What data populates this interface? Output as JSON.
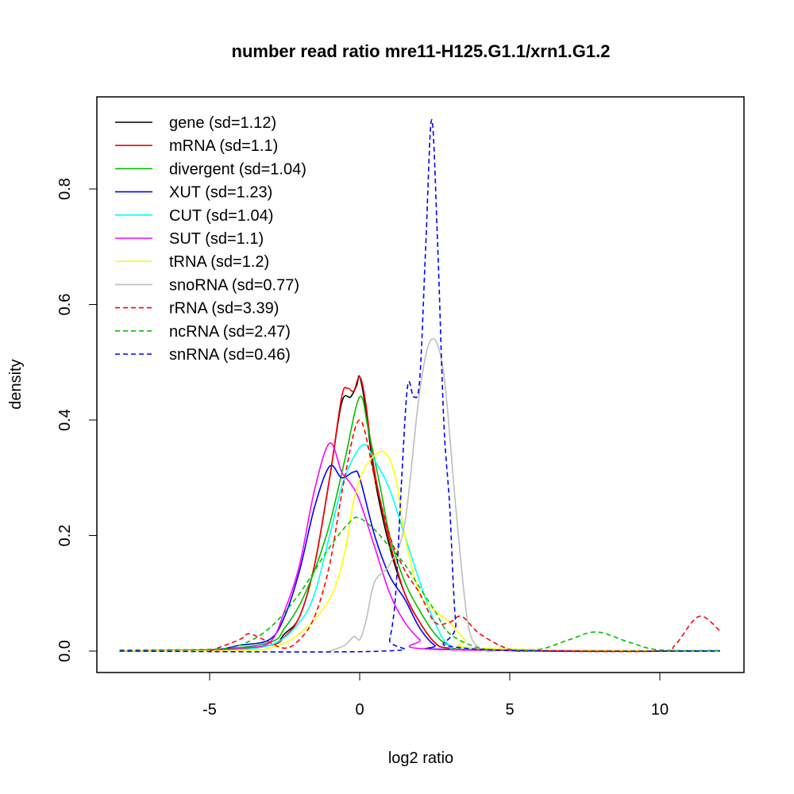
{
  "chart_data": {
    "type": "line",
    "title": "number read ratio mre11-H125.G1.1/xrn1.G1.2",
    "xlabel": "log2 ratio",
    "ylabel": "density",
    "xlim": [
      -8.5,
      13
    ],
    "ylim": [
      -0.035,
      0.96
    ],
    "xticks": [
      -5,
      0,
      5,
      10
    ],
    "xtick_labels": [
      "-5",
      "0",
      "5",
      "10"
    ],
    "yticks": [
      0,
      0.2,
      0.4,
      0.6,
      0.8
    ],
    "ytick_labels": [
      "0.0",
      "0.2",
      "0.4",
      "0.6",
      "0.8"
    ],
    "legend_position": "top-left",
    "series": [
      {
        "name": "gene (sd=1.12)",
        "color": "#000000",
        "dash": false,
        "points": [
          [
            -8,
            0
          ],
          [
            -5,
            0.002
          ],
          [
            -3,
            0.01
          ],
          [
            -2.5,
            0.03
          ],
          [
            -2,
            0.06
          ],
          [
            -1.5,
            0.15
          ],
          [
            -1,
            0.3
          ],
          [
            -0.6,
            0.43
          ],
          [
            -0.3,
            0.44
          ],
          [
            -0.1,
            0.46
          ],
          [
            0,
            0.475
          ],
          [
            0.2,
            0.42
          ],
          [
            0.5,
            0.3
          ],
          [
            1,
            0.18
          ],
          [
            1.5,
            0.1
          ],
          [
            2,
            0.05
          ],
          [
            2.5,
            0.015
          ],
          [
            3,
            0.005
          ],
          [
            5,
            0.001
          ],
          [
            12,
            0
          ]
        ]
      },
      {
        "name": "mRNA (sd=1.1)",
        "color": "#ff0000",
        "dash": false,
        "points": [
          [
            -8,
            0
          ],
          [
            -5,
            0.002
          ],
          [
            -3,
            0.01
          ],
          [
            -2.5,
            0.025
          ],
          [
            -2,
            0.06
          ],
          [
            -1.5,
            0.15
          ],
          [
            -1,
            0.3
          ],
          [
            -0.6,
            0.44
          ],
          [
            -0.4,
            0.455
          ],
          [
            -0.2,
            0.45
          ],
          [
            0,
            0.475
          ],
          [
            0.2,
            0.43
          ],
          [
            0.5,
            0.31
          ],
          [
            1,
            0.19
          ],
          [
            1.5,
            0.1
          ],
          [
            2,
            0.05
          ],
          [
            2.5,
            0.015
          ],
          [
            3,
            0.005
          ],
          [
            5,
            0.001
          ],
          [
            12,
            0
          ]
        ]
      },
      {
        "name": "divergent (sd=1.04)",
        "color": "#00c000",
        "dash": false,
        "points": [
          [
            -8,
            0
          ],
          [
            -5,
            0.002
          ],
          [
            -3,
            0.015
          ],
          [
            -2.5,
            0.04
          ],
          [
            -2,
            0.08
          ],
          [
            -1.5,
            0.14
          ],
          [
            -1,
            0.22
          ],
          [
            -0.5,
            0.33
          ],
          [
            0,
            0.44
          ],
          [
            0.3,
            0.38
          ],
          [
            0.7,
            0.28
          ],
          [
            1,
            0.2
          ],
          [
            1.5,
            0.12
          ],
          [
            2,
            0.07
          ],
          [
            2.5,
            0.03
          ],
          [
            3,
            0.01
          ],
          [
            4,
            0.002
          ],
          [
            12,
            0
          ]
        ]
      },
      {
        "name": "XUT (sd=1.23)",
        "color": "#0000ff",
        "dash": false,
        "points": [
          [
            -8,
            0
          ],
          [
            -5,
            0.002
          ],
          [
            -4,
            0.01
          ],
          [
            -3,
            0.02
          ],
          [
            -2.5,
            0.06
          ],
          [
            -2,
            0.14
          ],
          [
            -1.5,
            0.25
          ],
          [
            -1,
            0.32
          ],
          [
            -0.6,
            0.3
          ],
          [
            -0.2,
            0.31
          ],
          [
            0,
            0.3
          ],
          [
            0.5,
            0.2
          ],
          [
            1,
            0.13
          ],
          [
            1.5,
            0.09
          ],
          [
            2,
            0.04
          ],
          [
            2.5,
            0.01
          ],
          [
            3,
            0.003
          ],
          [
            12,
            0
          ]
        ]
      },
      {
        "name": "CUT (sd=1.04)",
        "color": "#00ffff",
        "dash": false,
        "points": [
          [
            -8,
            0
          ],
          [
            -5,
            0.001
          ],
          [
            -3,
            0.01
          ],
          [
            -2,
            0.05
          ],
          [
            -1.5,
            0.1
          ],
          [
            -1,
            0.2
          ],
          [
            -0.5,
            0.3
          ],
          [
            0.1,
            0.357
          ],
          [
            0.5,
            0.33
          ],
          [
            1,
            0.28
          ],
          [
            1.5,
            0.2
          ],
          [
            2,
            0.12
          ],
          [
            2.5,
            0.05
          ],
          [
            3,
            0.01
          ],
          [
            4,
            0.002
          ],
          [
            12,
            0
          ]
        ]
      },
      {
        "name": "SUT (sd=1.1)",
        "color": "#ff00ff",
        "dash": false,
        "points": [
          [
            -8,
            0
          ],
          [
            -5,
            0.002
          ],
          [
            -4,
            0.005
          ],
          [
            -3,
            0.015
          ],
          [
            -2.5,
            0.07
          ],
          [
            -2,
            0.15
          ],
          [
            -1.5,
            0.28
          ],
          [
            -1,
            0.36
          ],
          [
            -0.6,
            0.31
          ],
          [
            -0.3,
            0.29
          ],
          [
            0,
            0.26
          ],
          [
            0.5,
            0.18
          ],
          [
            1,
            0.1
          ],
          [
            1.5,
            0.05
          ],
          [
            2,
            0.02
          ],
          [
            2.5,
            0.003
          ],
          [
            12,
            0
          ]
        ]
      },
      {
        "name": "tRNA (sd=1.2)",
        "color": "#ffff00",
        "dash": false,
        "points": [
          [
            -8,
            0
          ],
          [
            -4,
            0.001
          ],
          [
            -3,
            0.005
          ],
          [
            -2,
            0.03
          ],
          [
            -1,
            0.09
          ],
          [
            -0.5,
            0.17
          ],
          [
            -0.2,
            0.26
          ],
          [
            0.2,
            0.32
          ],
          [
            0.8,
            0.345
          ],
          [
            1.2,
            0.3
          ],
          [
            1.5,
            0.2
          ],
          [
            2,
            0.1
          ],
          [
            2.5,
            0.07
          ],
          [
            3,
            0.05
          ],
          [
            3.5,
            0.02
          ],
          [
            4,
            0.005
          ],
          [
            12,
            0
          ]
        ]
      },
      {
        "name": "snoRNA (sd=0.77)",
        "color": "#bebebe",
        "dash": false,
        "points": [
          [
            -1,
            0
          ],
          [
            -0.5,
            0.01
          ],
          [
            -0.2,
            0.025
          ],
          [
            0,
            0.02
          ],
          [
            0.2,
            0.05
          ],
          [
            0.5,
            0.12
          ],
          [
            1,
            0.15
          ],
          [
            1.5,
            0.22
          ],
          [
            2,
            0.45
          ],
          [
            2.4,
            0.54
          ],
          [
            2.8,
            0.48
          ],
          [
            3.2,
            0.25
          ],
          [
            3.6,
            0.05
          ],
          [
            4,
            0.005
          ],
          [
            4.5,
            0
          ]
        ]
      },
      {
        "name": "rRNA (sd=3.39)",
        "color": "#ff0000",
        "dash": true,
        "points": [
          [
            -5,
            0
          ],
          [
            -4,
            0.02
          ],
          [
            -3.7,
            0.03
          ],
          [
            -3.2,
            0.02
          ],
          [
            -2.5,
            0.005
          ],
          [
            -2,
            0.02
          ],
          [
            -1.5,
            0.06
          ],
          [
            -1,
            0.15
          ],
          [
            -0.5,
            0.3
          ],
          [
            0,
            0.4
          ],
          [
            0.5,
            0.3
          ],
          [
            1,
            0.2
          ],
          [
            1.5,
            0.14
          ],
          [
            2,
            0.1
          ],
          [
            2.5,
            0.05
          ],
          [
            3,
            0.05
          ],
          [
            3.4,
            0.06
          ],
          [
            4,
            0.03
          ],
          [
            5,
            0.003
          ],
          [
            6,
            0
          ],
          [
            10,
            0
          ],
          [
            10.5,
            0.01
          ],
          [
            11.3,
            0.06
          ],
          [
            12,
            0.035
          ]
        ]
      },
      {
        "name": "ncRNA (sd=2.47)",
        "color": "#00c000",
        "dash": true,
        "points": [
          [
            -8,
            0.002
          ],
          [
            -5,
            0.003
          ],
          [
            -4,
            0.01
          ],
          [
            -3,
            0.04
          ],
          [
            -2,
            0.1
          ],
          [
            -1,
            0.18
          ],
          [
            -0.3,
            0.225
          ],
          [
            0,
            0.23
          ],
          [
            0.5,
            0.21
          ],
          [
            1,
            0.18
          ],
          [
            1.5,
            0.15
          ],
          [
            2,
            0.11
          ],
          [
            2.5,
            0.07
          ],
          [
            3,
            0.03
          ],
          [
            4,
            0.005
          ],
          [
            5,
            0.002
          ],
          [
            6,
            0.003
          ],
          [
            7,
            0.02
          ],
          [
            7.9,
            0.033
          ],
          [
            9,
            0.015
          ],
          [
            10,
            0.002
          ],
          [
            12,
            0.001
          ]
        ]
      },
      {
        "name": "snRNA (sd=0.46)",
        "color": "#0000ff",
        "dash": true,
        "points": [
          [
            -8,
            0
          ],
          [
            0.8,
            0
          ],
          [
            1.0,
            0.02
          ],
          [
            1.2,
            0.1
          ],
          [
            1.4,
            0.3
          ],
          [
            1.6,
            0.46
          ],
          [
            1.8,
            0.44
          ],
          [
            2,
            0.47
          ],
          [
            2.2,
            0.7
          ],
          [
            2.4,
            0.92
          ],
          [
            2.6,
            0.7
          ],
          [
            2.8,
            0.4
          ],
          [
            3.0,
            0.25
          ],
          [
            3.2,
            0.05
          ],
          [
            3.5,
            0.005
          ],
          [
            12,
            0
          ]
        ]
      }
    ]
  }
}
